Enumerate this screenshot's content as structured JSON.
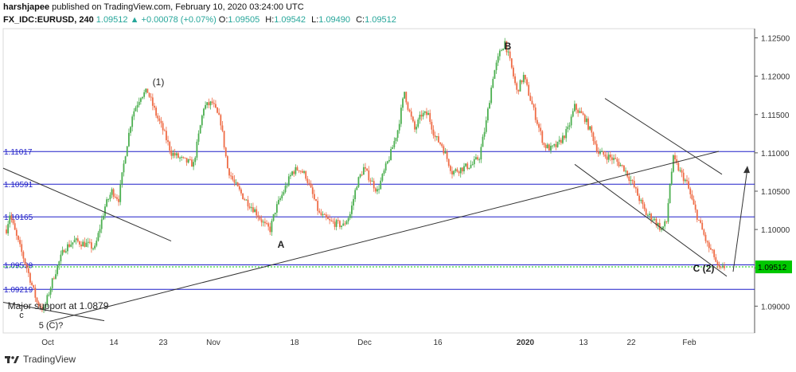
{
  "header": {
    "author": "harshjapee",
    "published_prefix": "published on TradingView.com,",
    "published_date": "February 10, 2020 03:24:00 UTC",
    "symbol": "FX_IDC:EURUSD, 240",
    "price": "1.09512",
    "change": "+0.00078 (+0.07%)",
    "ohlc": [
      {
        "k": "O:",
        "v": "1.09505"
      },
      {
        "k": "H:",
        "v": "1.09542"
      },
      {
        "k": "L:",
        "v": "1.09490"
      },
      {
        "k": "C:",
        "v": "1.09512"
      }
    ]
  },
  "footer": {
    "brand": "TradingView"
  },
  "colors": {
    "up": "#26a69a",
    "down": "#ef5350",
    "upCandle": "#4caf50",
    "downCandle": "#ef6c46",
    "level": "#1e1ec8",
    "trend": "#333333",
    "last": "#00c800"
  },
  "chart_data": {
    "type": "candlestick",
    "symbol": "FX_IDC:EURUSD",
    "interval": "240",
    "ylim": [
      1.0865,
      1.1262
    ],
    "y_ticks": [
      "1.12500",
      "1.12000",
      "1.11500",
      "1.11000",
      "1.10500",
      "1.10000",
      "1.09500",
      "1.09000"
    ],
    "x_ticks": [
      "Oct",
      "14",
      "23",
      "Nov",
      "18",
      "Dec",
      "16",
      "2020",
      "13",
      "22",
      "Feb"
    ],
    "last_price": "1.09512",
    "horizontal_levels": [
      {
        "value": 1.11017,
        "label": "1.11017"
      },
      {
        "value": 1.10591,
        "label": "1.10591"
      },
      {
        "value": 1.10165,
        "label": "1.10165"
      },
      {
        "value": 1.09539,
        "label": "1.09539"
      },
      {
        "value": 1.09219,
        "label": "1.09219"
      }
    ],
    "price_path": [
      [
        0,
        1.1
      ],
      [
        2,
        1.102
      ],
      [
        6,
        1.099
      ],
      [
        12,
        1.095
      ],
      [
        18,
        1.0905
      ],
      [
        22,
        1.0895
      ],
      [
        28,
        1.094
      ],
      [
        34,
        1.0975
      ],
      [
        40,
        1.0985
      ],
      [
        48,
        1.098
      ],
      [
        52,
        1.0975
      ],
      [
        58,
        1.103
      ],
      [
        62,
        1.105
      ],
      [
        66,
        1.104
      ],
      [
        70,
        1.11
      ],
      [
        74,
        1.115
      ],
      [
        79,
        1.1175
      ],
      [
        83,
        1.118
      ],
      [
        88,
        1.115
      ],
      [
        92,
        1.113
      ],
      [
        97,
        1.11
      ],
      [
        104,
        1.109
      ],
      [
        110,
        1.1085
      ],
      [
        116,
        1.116
      ],
      [
        121,
        1.1165
      ],
      [
        126,
        1.114
      ],
      [
        130,
        1.108
      ],
      [
        134,
        1.106
      ],
      [
        140,
        1.104
      ],
      [
        146,
        1.1025
      ],
      [
        152,
        1.1005
      ],
      [
        155,
        1.1
      ],
      [
        158,
        1.1025
      ],
      [
        163,
        1.105
      ],
      [
        168,
        1.1075
      ],
      [
        172,
        1.108
      ],
      [
        176,
        1.107
      ],
      [
        180,
        1.1045
      ],
      [
        184,
        1.102
      ],
      [
        190,
        1.101
      ],
      [
        198,
        1.1005
      ],
      [
        202,
        1.102
      ],
      [
        206,
        1.106
      ],
      [
        210,
        1.108
      ],
      [
        214,
        1.1065
      ],
      [
        218,
        1.105
      ],
      [
        222,
        1.1075
      ],
      [
        226,
        1.11
      ],
      [
        230,
        1.113
      ],
      [
        234,
        1.118
      ],
      [
        236,
        1.116
      ],
      [
        240,
        1.113
      ],
      [
        244,
        1.115
      ],
      [
        248,
        1.115
      ],
      [
        252,
        1.112
      ],
      [
        256,
        1.111
      ],
      [
        262,
        1.1075
      ],
      [
        268,
        1.108
      ],
      [
        274,
        1.1085
      ],
      [
        278,
        1.1095
      ],
      [
        282,
        1.114
      ],
      [
        286,
        1.12
      ],
      [
        290,
        1.123
      ],
      [
        293,
        1.1245
      ],
      [
        297,
        1.121
      ],
      [
        300,
        1.118
      ],
      [
        304,
        1.12
      ],
      [
        308,
        1.117
      ],
      [
        312,
        1.114
      ],
      [
        316,
        1.111
      ],
      [
        320,
        1.1105
      ],
      [
        324,
        1.111
      ],
      [
        330,
        1.113
      ],
      [
        334,
        1.116
      ],
      [
        340,
        1.1145
      ],
      [
        344,
        1.1125
      ],
      [
        348,
        1.11
      ],
      [
        354,
        1.1095
      ],
      [
        358,
        1.109
      ],
      [
        363,
        1.108
      ],
      [
        368,
        1.106
      ],
      [
        372,
        1.104
      ],
      [
        376,
        1.102
      ],
      [
        380,
        1.1015
      ],
      [
        385,
        1.1
      ],
      [
        388,
        1.101
      ],
      [
        390,
        1.106
      ],
      [
        392,
        1.1092
      ],
      [
        396,
        1.1075
      ],
      [
        400,
        1.106
      ],
      [
        404,
        1.103
      ],
      [
        408,
        1.1005
      ],
      [
        412,
        1.098
      ],
      [
        416,
        1.0965
      ],
      [
        418,
        1.095
      ],
      [
        420,
        1.0947
      ],
      [
        422,
        1.0951
      ]
    ],
    "path_x_range": [
      0,
      422
    ],
    "annotations": [
      "(1)",
      "A",
      "B",
      "C (2)",
      "Major support at 1.0879",
      "5 (C)?",
      "c"
    ]
  }
}
